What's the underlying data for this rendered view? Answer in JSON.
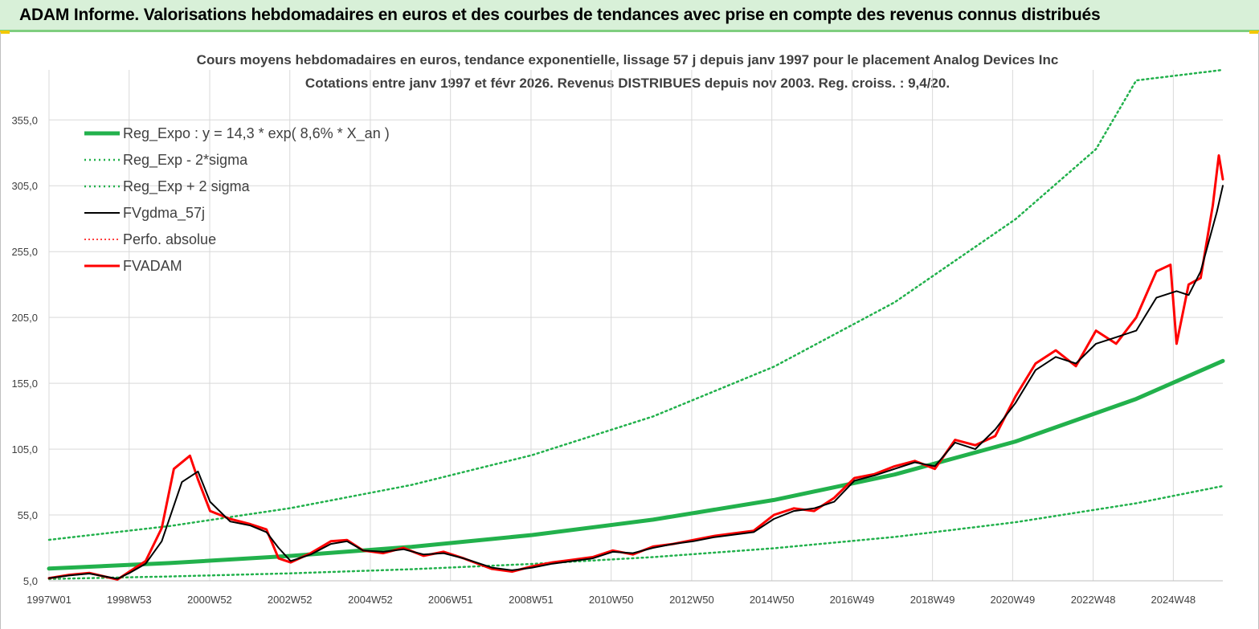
{
  "banner": {
    "title": "ADAM Informe. Valorisations hebdomadaires en euros et des courbes de tendances avec prise en compte des revenus connus distribués"
  },
  "colors": {
    "banner_bg": "#d8f0d8",
    "trend_green": "#22b14c",
    "series_red": "#ff0000",
    "series_black": "#000000",
    "grid": "#d9d9d9"
  },
  "chart_data": {
    "type": "line",
    "title_line1": "Cours moyens hebdomadaires en euros, tendance exponentielle, lissage 57 j depuis janv 1997 pour le placement Analog Devices Inc",
    "title_line2": "Cotations entre janv 1997 et févr 2026. Revenus DISTRIBUES depuis nov 2003. Reg. croiss. : 9,4/20.",
    "xlabel": "",
    "ylabel": "",
    "x_start_year": 1997.0,
    "x_end_year": 2026.15,
    "ylim": [
      5,
      393
    ],
    "y_ticks": [
      5,
      55,
      105,
      155,
      205,
      255,
      305,
      355
    ],
    "y_tick_labels": [
      "5,0",
      "55,0",
      "105,0",
      "155,0",
      "205,0",
      "255,0",
      "305,0",
      "355,0"
    ],
    "x_ticks": [
      1997.0,
      1998.99,
      2000.99,
      2002.98,
      2004.98,
      2006.97,
      2008.97,
      2010.96,
      2012.96,
      2014.95,
      2016.94,
      2018.94,
      2020.93,
      2022.93,
      2024.92
    ],
    "x_tick_labels": [
      "1997W01",
      "1998W53",
      "2000W52",
      "2002W52",
      "2004W52",
      "2006W51",
      "2008W51",
      "2010W50",
      "2012W50",
      "2014W50",
      "2016W49",
      "2018W49",
      "2020W49",
      "2022W48",
      "2024W48"
    ],
    "grid": true,
    "legend_position": "top-left",
    "series": [
      {
        "name": "Reg_Expo : y = 14,3 * exp( 8,6% *  X_an )",
        "style": "thick-solid-green",
        "x": [
          1997.0,
          2000.0,
          2003.0,
          2006.0,
          2009.0,
          2012.0,
          2015.0,
          2018.0,
          2021.0,
          2024.0,
          2026.15
        ],
        "values": [
          14.3,
          18.5,
          23.9,
          30.8,
          39.8,
          51.4,
          66.4,
          85.7,
          110.8,
          143.1,
          172.0
        ]
      },
      {
        "name": "Reg_Exp - 2*sigma",
        "style": "dotted-green",
        "x": [
          1997.0,
          2000.0,
          2003.0,
          2006.0,
          2009.0,
          2012.0,
          2015.0,
          2018.0,
          2021.0,
          2024.0,
          2026.15
        ],
        "values": [
          6.4,
          8.3,
          10.7,
          13.8,
          17.8,
          23.0,
          29.7,
          38.3,
          49.5,
          63.9,
          77.0
        ]
      },
      {
        "name": "Reg_Exp + 2 sigma",
        "style": "dotted-green",
        "x": [
          1997.0,
          2000.0,
          2003.0,
          2006.0,
          2009.0,
          2012.0,
          2015.0,
          2018.0,
          2021.0,
          2023.0,
          2024.0,
          2026.15
        ],
        "values": [
          36.1,
          46.6,
          60.2,
          77.8,
          100.5,
          129.8,
          167.6,
          216.5,
          279.6,
          332.8,
          385.0,
          393.0
        ]
      },
      {
        "name": "FVgdma_57j",
        "style": "solid-black",
        "x": [
          1997.0,
          1997.5,
          1998.0,
          1998.7,
          1999.0,
          1999.4,
          1999.8,
          2000.3,
          2000.7,
          2001.0,
          2001.5,
          2002.0,
          2002.4,
          2002.7,
          2003.0,
          2003.5,
          2004.0,
          2004.4,
          2004.8,
          2005.3,
          2005.8,
          2006.3,
          2006.8,
          2007.3,
          2008.0,
          2008.5,
          2009.0,
          2009.5,
          2010.0,
          2010.5,
          2011.0,
          2011.5,
          2012.0,
          2012.5,
          2013.0,
          2013.5,
          2014.0,
          2014.5,
          2015.0,
          2015.5,
          2016.0,
          2016.5,
          2017.0,
          2017.5,
          2018.0,
          2018.5,
          2019.0,
          2019.5,
          2020.0,
          2020.5,
          2021.0,
          2021.5,
          2022.0,
          2022.5,
          2023.0,
          2023.5,
          2024.0,
          2024.5,
          2025.0,
          2025.3,
          2025.6,
          2026.0,
          2026.15
        ],
        "values": [
          7.0,
          9.0,
          10.5,
          6.5,
          11.0,
          18.0,
          35.0,
          80.0,
          88.0,
          65.0,
          50.0,
          47.0,
          42.0,
          30.0,
          20.0,
          25.0,
          33.0,
          35.0,
          28.0,
          27.0,
          29.0,
          25.0,
          26.0,
          22.0,
          15.0,
          13.0,
          15.0,
          18.0,
          20.0,
          22.0,
          27.0,
          26.0,
          30.0,
          33.0,
          35.0,
          38.0,
          40.0,
          42.0,
          52.0,
          58.0,
          60.0,
          65.0,
          81.0,
          85.0,
          90.0,
          95.0,
          92.0,
          110.0,
          105.0,
          120.0,
          140.0,
          165.0,
          175.0,
          170.0,
          185.0,
          190.0,
          195.0,
          220.0,
          225.0,
          222.0,
          240.0,
          285.0,
          305.0
        ]
      },
      {
        "name": "Perfo. absolue",
        "style": "dotted-red",
        "x": [],
        "values": []
      },
      {
        "name": "FVADAM",
        "style": "thick-solid-red",
        "x": [
          1997.0,
          1997.5,
          1998.0,
          1998.7,
          1999.0,
          1999.4,
          1999.8,
          2000.1,
          2000.5,
          2000.7,
          2001.0,
          2001.5,
          2002.0,
          2002.4,
          2002.7,
          2003.0,
          2003.5,
          2004.0,
          2004.4,
          2004.8,
          2005.3,
          2005.8,
          2006.3,
          2006.8,
          2007.3,
          2008.0,
          2008.5,
          2009.0,
          2009.5,
          2010.0,
          2010.5,
          2011.0,
          2011.5,
          2012.0,
          2012.5,
          2013.0,
          2013.5,
          2014.0,
          2014.5,
          2015.0,
          2015.5,
          2016.0,
          2016.5,
          2017.0,
          2017.5,
          2018.0,
          2018.5,
          2019.0,
          2019.5,
          2020.0,
          2020.5,
          2021.0,
          2021.5,
          2022.0,
          2022.5,
          2023.0,
          2023.5,
          2024.0,
          2024.5,
          2024.85,
          2025.0,
          2025.3,
          2025.6,
          2025.9,
          2026.05,
          2026.15
        ],
        "values": [
          7.0,
          9.5,
          11.0,
          6.0,
          12.0,
          20.0,
          45.0,
          90.0,
          100.0,
          82.0,
          58.0,
          52.0,
          48.0,
          44.0,
          22.0,
          19.0,
          26.0,
          35.0,
          36.0,
          28.0,
          26.0,
          30.0,
          24.0,
          27.0,
          22.0,
          14.0,
          12.0,
          16.0,
          19.0,
          21.0,
          23.0,
          28.0,
          25.0,
          31.0,
          33.0,
          36.0,
          39.0,
          41.0,
          43.0,
          55.0,
          60.0,
          58.0,
          68.0,
          83.0,
          86.0,
          92.0,
          96.0,
          90.0,
          112.0,
          108.0,
          115.0,
          145.0,
          170.0,
          180.0,
          168.0,
          195.0,
          185.0,
          205.0,
          240.0,
          245.0,
          185.0,
          230.0,
          235.0,
          290.0,
          328.0,
          310.0
        ]
      }
    ]
  }
}
